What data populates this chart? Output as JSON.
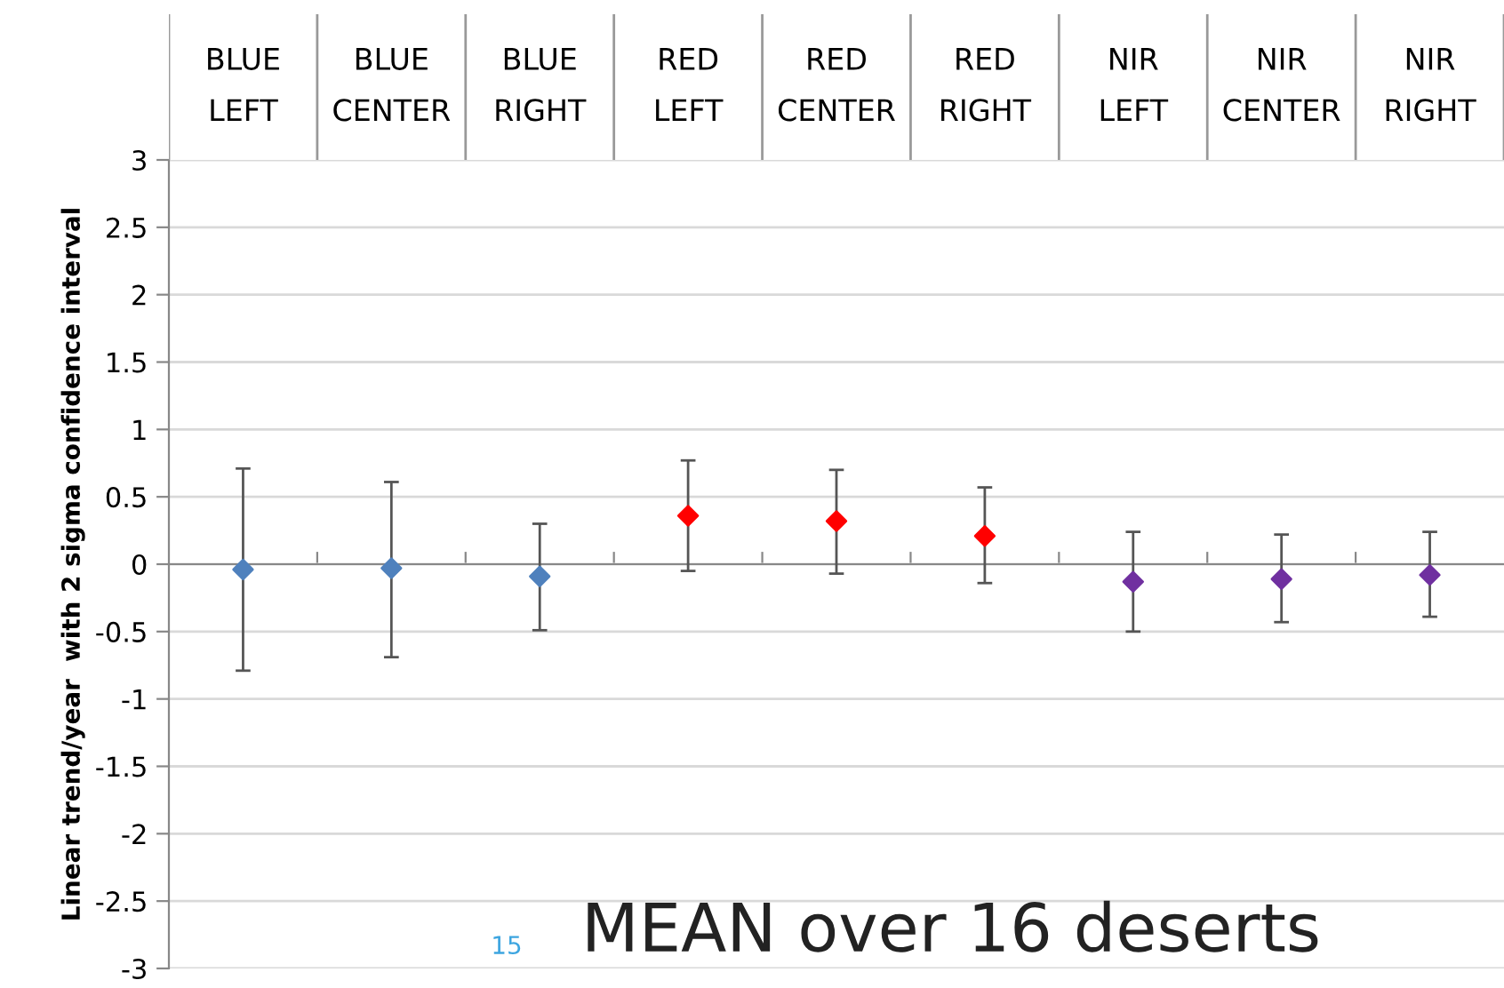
{
  "chart_data": {
    "type": "scatter",
    "categories": [
      "BLUE\nLEFT",
      "BLUE\nCENTER",
      "BLUE\nRIGHT",
      "RED\nLEFT",
      "RED\nCENTER",
      "RED\nRIGHT",
      "NIR\nLEFT",
      "NIR\nCENTER",
      "NIR\nRIGHT"
    ],
    "series": [
      {
        "color": "#4f81bd",
        "values": [
          -0.04,
          -0.03,
          -0.09,
          null,
          null,
          null,
          null,
          null,
          null
        ],
        "errors": [
          [
            -0.79,
            0.71
          ],
          [
            -0.69,
            0.61
          ],
          [
            -0.49,
            0.3
          ],
          null,
          null,
          null,
          null,
          null,
          null
        ]
      },
      {
        "color": "#ff0000",
        "values": [
          null,
          null,
          null,
          0.36,
          0.32,
          0.21,
          null,
          null,
          null
        ],
        "errors": [
          null,
          null,
          null,
          [
            -0.05,
            0.77
          ],
          [
            -0.07,
            0.7
          ],
          [
            -0.14,
            0.57
          ],
          null,
          null,
          null
        ]
      },
      {
        "color": "#7030a0",
        "values": [
          null,
          null,
          null,
          null,
          null,
          null,
          -0.13,
          -0.11,
          -0.08
        ],
        "errors": [
          null,
          null,
          null,
          null,
          null,
          null,
          [
            -0.5,
            0.24
          ],
          [
            -0.43,
            0.22
          ],
          [
            -0.39,
            0.24
          ]
        ]
      }
    ],
    "ylabel": "Linear trend/year  with 2 sigma confidence interval",
    "ylim": [
      -3,
      3
    ],
    "yticks": [
      -3,
      -2.5,
      -2,
      -1.5,
      -1,
      -0.5,
      0,
      0.5,
      1,
      1.5,
      2,
      2.5,
      3
    ],
    "grid": "y",
    "marker": "diamond",
    "legend": false,
    "annotations": [
      "MEAN over 16 deserts",
      "15"
    ]
  }
}
